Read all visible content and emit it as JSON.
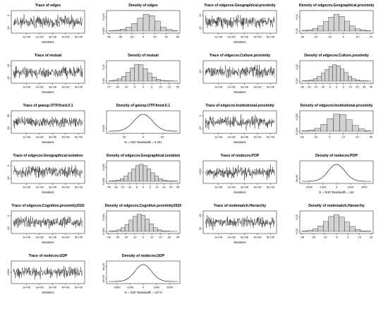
{
  "colors": {
    "trace": "#000000",
    "bar_fill": "#d3d3d3",
    "bar_stroke": "#000000",
    "axis": "#000000",
    "background": "#ffffff"
  },
  "chart_data": [
    {
      "type": "line",
      "title": "Trace of edges",
      "xlabel": "Iterations",
      "x_ticks": [
        "1e+06",
        "2e+06",
        "3e+06",
        "4e+06",
        "5e+06"
      ],
      "y_ticks": [
        "-40",
        "0"
      ],
      "ylim": [
        -60,
        25
      ]
    },
    {
      "type": "bar",
      "title": "Density of edges",
      "x_ticks": [
        "-60",
        "-40",
        "-20",
        "0",
        "20",
        "40",
        "60"
      ],
      "y_ticks": [
        "0.000",
        "0.015"
      ],
      "bin_start": -60,
      "bin_width": 10,
      "values": [
        0.0005,
        0.001,
        0.0025,
        0.005,
        0.01,
        0.017,
        0.022,
        0.02,
        0.013,
        0.005,
        0.002,
        0.0005
      ],
      "ylim": [
        0,
        0.024
      ]
    },
    {
      "type": "line",
      "title": "Trace of edgecov.Geographical.proximity",
      "xlabel": "Iterations",
      "x_ticks": [
        "1e+06",
        "2e+06",
        "3e+06",
        "4e+06",
        "5e+06"
      ],
      "y_ticks": [
        "-20",
        "10"
      ],
      "ylim": [
        -30,
        20
      ]
    },
    {
      "type": "bar",
      "title": "Density of edgecov.Geographical.proximity",
      "x_ticks": [
        "-28",
        "-20",
        "-10",
        "0",
        "10",
        "20"
      ],
      "y_ticks": [
        "0.00",
        "0.04"
      ],
      "bin_start": -28,
      "bin_width": 4,
      "values": [
        0.002,
        0.003,
        0.007,
        0.014,
        0.026,
        0.038,
        0.046,
        0.04,
        0.027,
        0.014,
        0.006,
        0.003,
        0.001
      ],
      "ylim": [
        0,
        0.05
      ]
    },
    {
      "type": "line",
      "title": "Trace of mutual",
      "xlabel": "Iterations",
      "x_ticks": [
        "1e+06",
        "2e+06",
        "3e+06",
        "4e+06",
        "5e+06"
      ],
      "y_ticks": [
        "-20",
        "10"
      ],
      "ylim": [
        -28,
        18
      ]
    },
    {
      "type": "bar",
      "title": "Density of mutual",
      "x_ticks": [
        "-27",
        "-20",
        "-10",
        "-5",
        "0",
        "5",
        "10",
        "15",
        "20"
      ],
      "y_ticks": [
        "0.00",
        "0.04"
      ],
      "bin_start": -27,
      "bin_width": 3,
      "values": [
        0.001,
        0.003,
        0.006,
        0.013,
        0.024,
        0.036,
        0.046,
        0.045,
        0.034,
        0.022,
        0.011,
        0.005,
        0.002,
        0.001,
        0.0005,
        0.0002
      ],
      "ylim": [
        0,
        0.05
      ]
    },
    {
      "type": "line",
      "title": "Trace of edgecov.Culture.proximity",
      "xlabel": "Iterations",
      "x_ticks": [
        "1e+06",
        "2e+06",
        "3e+06",
        "4e+06",
        "5e+06"
      ],
      "y_ticks": [
        "-20"
      ],
      "ylim": [
        -40,
        25
      ]
    },
    {
      "type": "bar",
      "title": "Density of edgecov.Culture.proximity",
      "x_ticks": [
        "-45",
        "-30",
        "-20",
        "-10",
        "-5",
        "0",
        "5",
        "10",
        "20",
        "30",
        "40"
      ],
      "y_ticks": [
        "0.00",
        "0.02"
      ],
      "bin_start": -45,
      "bin_width": 5,
      "values": [
        0.0005,
        0.001,
        0.002,
        0.004,
        0.008,
        0.013,
        0.019,
        0.024,
        0.027,
        0.025,
        0.02,
        0.014,
        0.008,
        0.004,
        0.002,
        0.001,
        0.0005,
        0.0002
      ],
      "ylim": [
        0,
        0.03
      ]
    },
    {
      "type": "line",
      "title": "Trace of gwesp.OTP.fixed.0.1",
      "xlabel": "Iterations",
      "x_ticks": [
        "1e+06",
        "2e+06",
        "3e+06",
        "4e+06",
        "5e+06"
      ],
      "y_ticks": [
        "-50",
        "50"
      ],
      "ylim": [
        -80,
        80
      ]
    },
    {
      "type": "density",
      "title": "Density of gwesp.OTP.fixed.0.1",
      "x_ticks": [
        "-50",
        "0",
        "50"
      ],
      "y_ticks": [
        "0.000"
      ],
      "note": "N = 3167   Bandwidth = 4.401",
      "xlim": [
        -90,
        90
      ],
      "mean": 0,
      "sd": 24
    },
    {
      "type": "line",
      "title": "Trace of edgecov.Institutional.proximity",
      "xlabel": "Iterations",
      "x_ticks": [
        "1e+06",
        "2e+06",
        "3e+06",
        "4e+06",
        "5e+06"
      ],
      "y_ticks": [
        "-40",
        "0"
      ],
      "ylim": [
        -55,
        25
      ]
    },
    {
      "type": "bar",
      "title": "Density of edgecov.Institutional.proximity",
      "x_ticks": [
        "-52",
        "-20",
        "0",
        "10",
        "20",
        "40"
      ],
      "y_ticks": [
        "0.000",
        "0.025"
      ],
      "bin_start": -52,
      "bin_width": 8,
      "values": [
        0.001,
        0.002,
        0.005,
        0.012,
        0.022,
        0.03,
        0.029,
        0.02,
        0.01,
        0.004,
        0.001
      ],
      "ylim": [
        0,
        0.032
      ]
    },
    {
      "type": "line",
      "title": "Trace of edgecov.Geographical.isolation",
      "xlabel": "Iterations",
      "x_ticks": [
        "1e+06",
        "2e+06",
        "3e+06",
        "4e+06",
        "5e+06"
      ],
      "y_ticks": [
        "-40",
        "0"
      ],
      "ylim": [
        -50,
        15
      ]
    },
    {
      "type": "bar",
      "title": "Density of edgecov.Geographical.isolation",
      "x_ticks": [
        "-45",
        "-30",
        "-20",
        "-10",
        "-5",
        "0",
        "5",
        "10",
        "20",
        "30",
        "45"
      ],
      "y_ticks": [
        "0.000",
        "0.020"
      ],
      "bin_start": -45,
      "bin_width": 5,
      "values": [
        0.0005,
        0.001,
        0.002,
        0.004,
        0.008,
        0.013,
        0.019,
        0.024,
        0.026,
        0.024,
        0.019,
        0.013,
        0.008,
        0.004,
        0.002,
        0.001,
        0.0005,
        0.0002
      ],
      "ylim": [
        0,
        0.028
      ]
    },
    {
      "type": "line",
      "title": "Trace of nodecov.POP",
      "xlabel": "Iterations",
      "x_ticks": [
        "1e+06",
        "2e+06",
        "3e+06",
        "4e+06",
        "5e+06"
      ],
      "y_ticks": [
        "-1000"
      ],
      "ylim": [
        -1800,
        1800
      ]
    },
    {
      "type": "density",
      "title": "Density of nodecov.POP",
      "x_ticks": [
        "-2000",
        "-1000",
        "0",
        "1000",
        "2000"
      ],
      "y_ticks": [
        "0e+00"
      ],
      "note": "N = 3167   Bandwidth = 114",
      "xlim": [
        -2500,
        2500
      ],
      "mean": 0,
      "sd": 600
    },
    {
      "type": "line",
      "title": "Trace of edgecov.Cognitive.proximity2020",
      "xlabel": "Iterations",
      "x_ticks": [
        "1e+06",
        "2e+06",
        "3e+06",
        "4e+06",
        "5e+06"
      ],
      "y_ticks": [
        "-40",
        "0"
      ],
      "ylim": [
        -55,
        30
      ]
    },
    {
      "type": "bar",
      "title": "Density of edgecov.Cognitive.proximity2020",
      "x_ticks": [
        "-43",
        "-30",
        "-20",
        "-10",
        "0",
        "10",
        "20",
        "30",
        "40"
      ],
      "y_ticks": [
        "0.000",
        "0.030"
      ],
      "bin_start": -43,
      "bin_width": 5,
      "values": [
        0.0005,
        0.001,
        0.003,
        0.007,
        0.013,
        0.021,
        0.028,
        0.032,
        0.03,
        0.023,
        0.014,
        0.007,
        0.003,
        0.001,
        0.0005,
        0.0002,
        0.0001
      ],
      "ylim": [
        0,
        0.034
      ]
    },
    {
      "type": "line",
      "title": "Trace of nodematch.Hierarchy",
      "xlabel": "Iterations",
      "x_ticks": [
        "1e+06",
        "2e+06",
        "3e+06",
        "4e+06",
        "5e+06"
      ],
      "y_ticks": [
        "20",
        "-20"
      ],
      "ylim": [
        -30,
        30
      ]
    },
    {
      "type": "bar",
      "title": "Density of nodematch.Hierarchy",
      "x_ticks": [
        "-38",
        "-25",
        "-15",
        "-5",
        "5",
        "15",
        "25"
      ],
      "y_ticks": [
        "0.00",
        "0.03"
      ],
      "bin_start": -38,
      "bin_width": 5,
      "values": [
        0.001,
        0.002,
        0.005,
        0.011,
        0.02,
        0.03,
        0.034,
        0.029,
        0.019,
        0.01,
        0.004,
        0.001,
        0.0005
      ],
      "ylim": [
        0,
        0.037
      ]
    },
    {
      "type": "line",
      "title": "Trace of nodecov.GDP",
      "xlabel": "Iterations",
      "x_ticks": [
        "1e+06",
        "2e+06",
        "3e+06",
        "4e+06",
        "5e+06"
      ],
      "y_ticks": [
        "-2000"
      ],
      "ylim": [
        -2600,
        2000
      ]
    },
    {
      "type": "density",
      "title": "Density of nodecov.GDP",
      "x_ticks": [
        "-2000",
        "-1000",
        "0",
        "1000",
        "2000"
      ],
      "y_ticks": [
        "0e+00",
        "5e-04"
      ],
      "note": "N = 3167   Bandwidth = 127.9",
      "xlim": [
        -2600,
        2600
      ],
      "mean": 0,
      "sd": 620
    }
  ]
}
